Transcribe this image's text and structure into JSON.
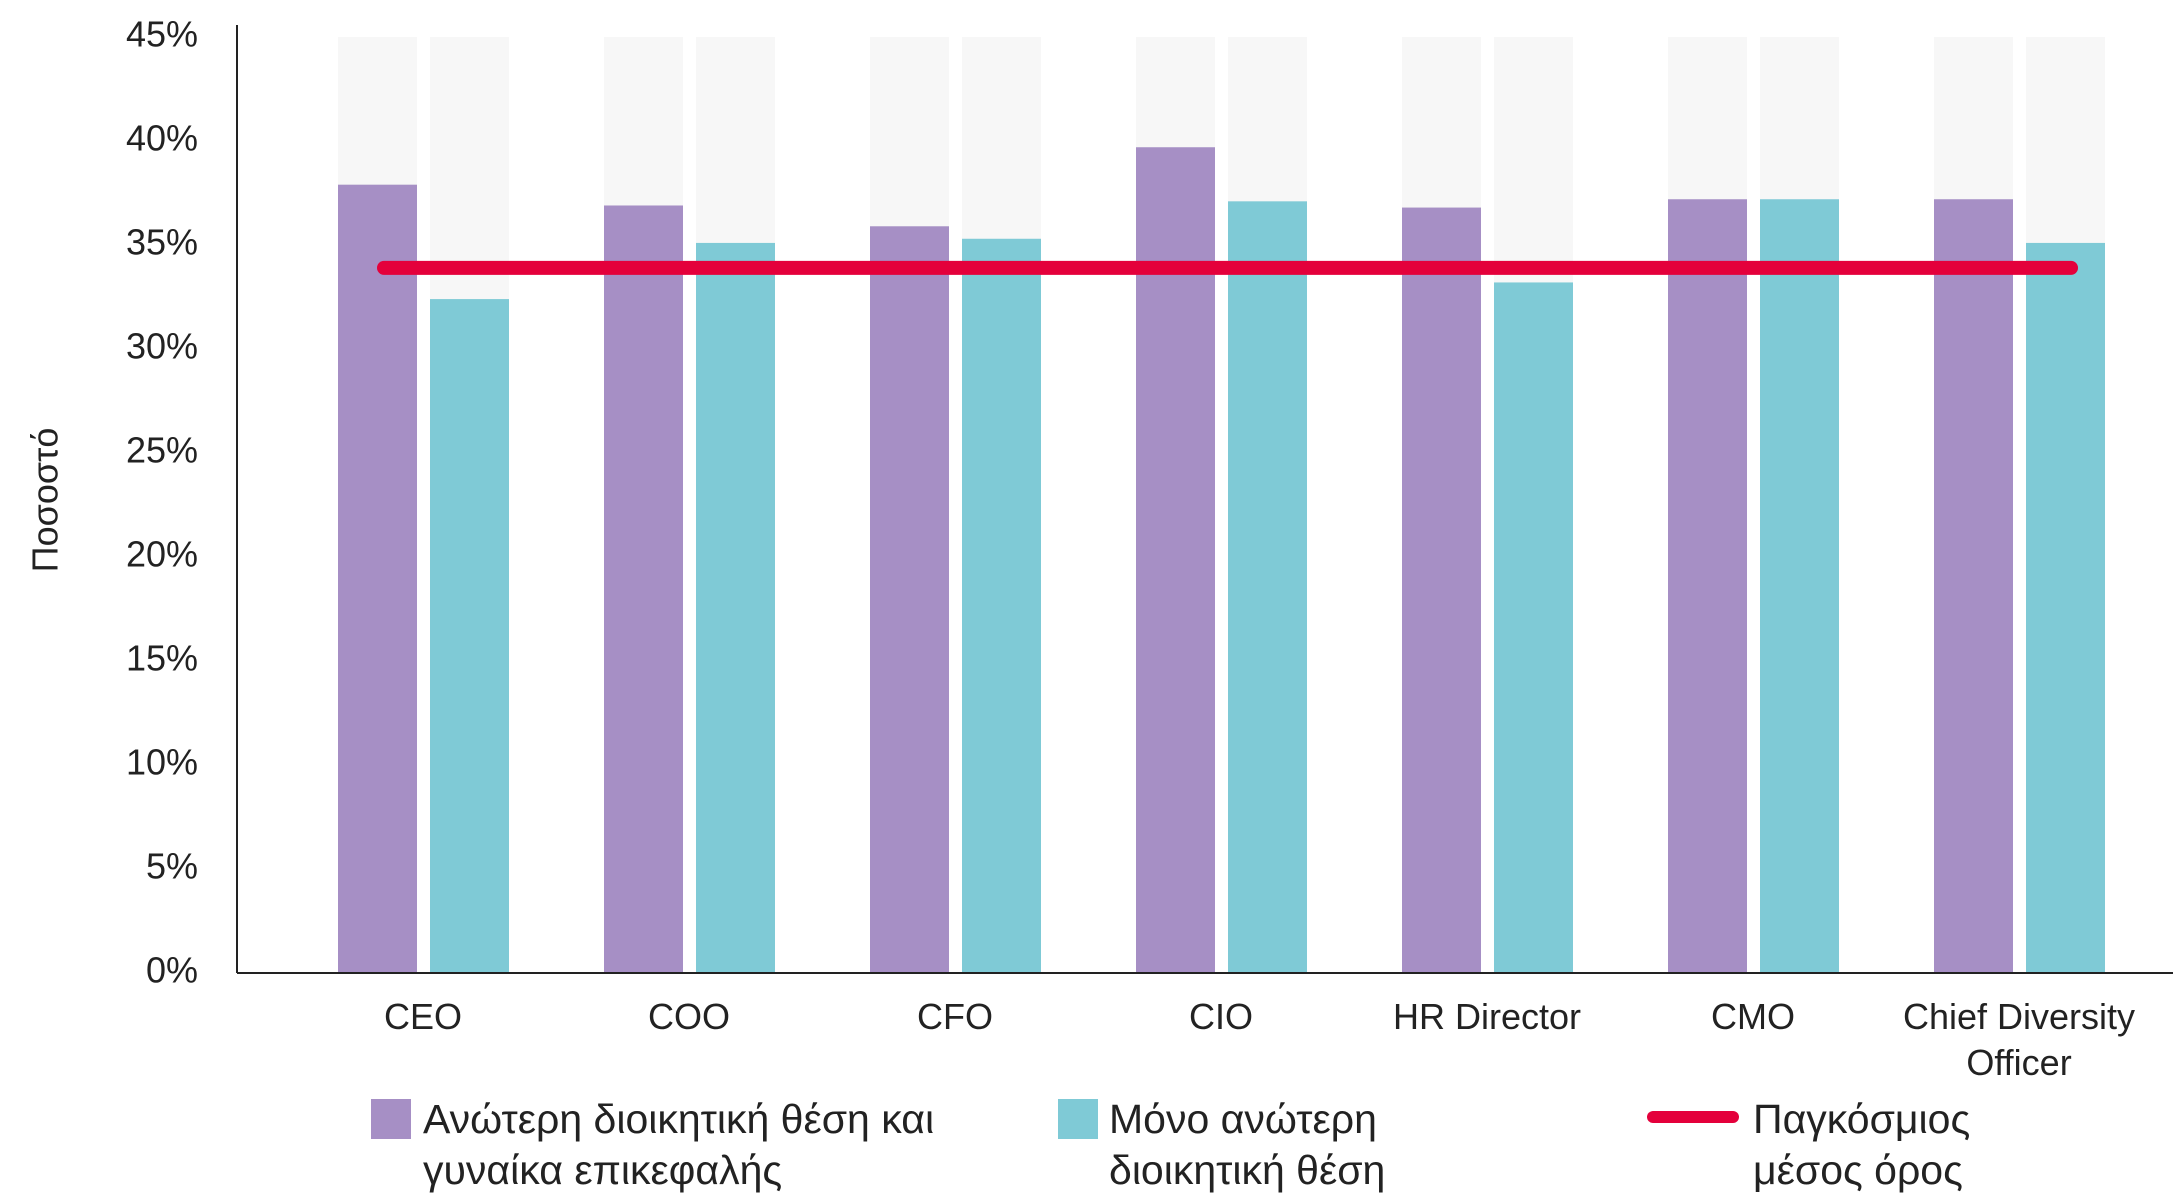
{
  "chart_data": {
    "type": "bar",
    "y_label": "Ποσοστό",
    "categories": [
      "CEO",
      "COO",
      "CFO",
      "CIO",
      "HR Director",
      "CMO",
      "Chief Diversity Officer"
    ],
    "series": [
      {
        "name": "Ανώτερη διοικητική θέση και γυναίκα επικεφαλής",
        "color": "#a68fc5",
        "values": [
          37.9,
          36.9,
          35.9,
          39.7,
          36.8,
          37.2,
          37.2
        ]
      },
      {
        "name": "Μόνο ανώτερη διοικητική θέση",
        "color": "#7fcad6",
        "values": [
          32.4,
          35.1,
          35.3,
          37.1,
          33.2,
          37.2,
          35.1
        ]
      }
    ],
    "average": {
      "name": "Παγκόσμιος μέσος όρος",
      "color": "#e4003b",
      "value": 33.9
    },
    "ylim": [
      0,
      45
    ],
    "yticks": [
      {
        "value": 0,
        "label": "0%"
      },
      {
        "value": 5,
        "label": "5%"
      },
      {
        "value": 10,
        "label": "10%"
      },
      {
        "value": 15,
        "label": "15%"
      },
      {
        "value": 20,
        "label": "20%"
      },
      {
        "value": 25,
        "label": "25%"
      },
      {
        "value": 30,
        "label": "30%"
      },
      {
        "value": 35,
        "label": "35%"
      },
      {
        "value": 40,
        "label": "40%"
      },
      {
        "value": 45,
        "label": "45%"
      }
    ]
  }
}
